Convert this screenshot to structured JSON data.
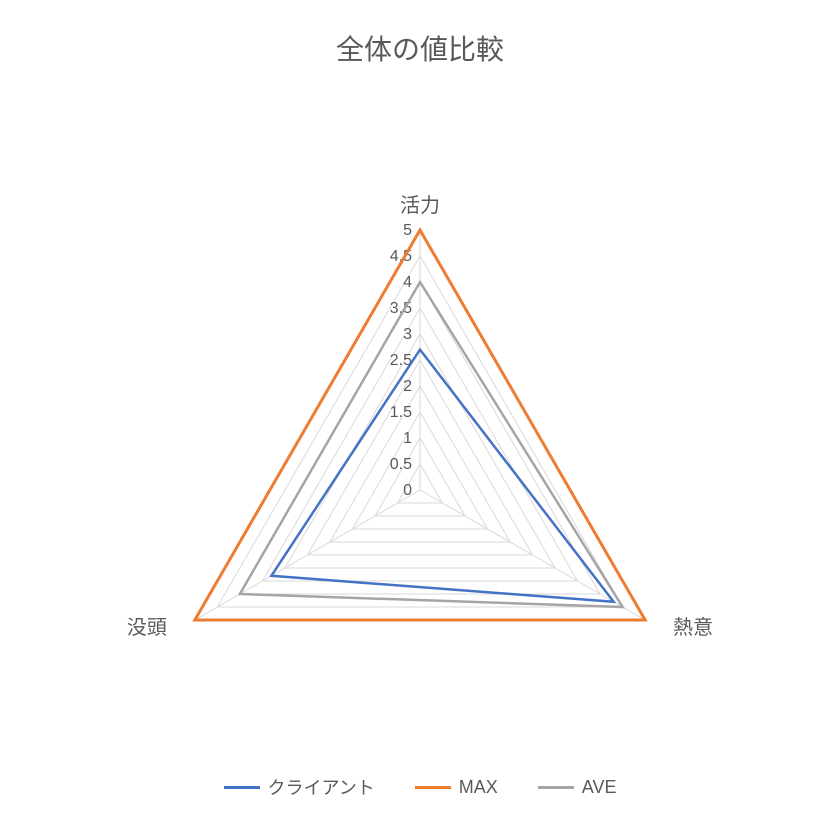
{
  "chart": {
    "type": "radar",
    "title": "全体の値比較",
    "title_fontsize": 28,
    "title_color": "#595959",
    "background_color": "#ffffff",
    "axes": [
      "活力",
      "熱意",
      "没頭"
    ],
    "axis_label_fontsize": 20,
    "axis_label_color": "#595959",
    "scale_min": 0,
    "scale_max": 5,
    "tick_step": 0.5,
    "tick_labels": [
      "0",
      "0.5",
      "1",
      "1.5",
      "2",
      "2.5",
      "3",
      "3.5",
      "4",
      "4.5",
      "5"
    ],
    "tick_label_fontsize": 16,
    "tick_label_color": "#595959",
    "grid_color": "#d9d9d9",
    "grid_line_width": 1,
    "series": [
      {
        "name": "クライアント",
        "values": [
          2.7,
          4.3,
          3.3
        ],
        "color": "#4472c4",
        "line_width": 2.5,
        "fill": "none"
      },
      {
        "name": "MAX",
        "values": [
          5.0,
          5.0,
          5.0
        ],
        "color": "#ed7d31",
        "line_width": 3,
        "fill": "none"
      },
      {
        "name": "AVE",
        "values": [
          4.0,
          4.5,
          4.0
        ],
        "color": "#a5a5a5",
        "line_width": 2.5,
        "fill": "none"
      }
    ],
    "legend": {
      "position": "bottom",
      "fontsize": 18,
      "color": "#595959",
      "line_length": 36
    }
  }
}
